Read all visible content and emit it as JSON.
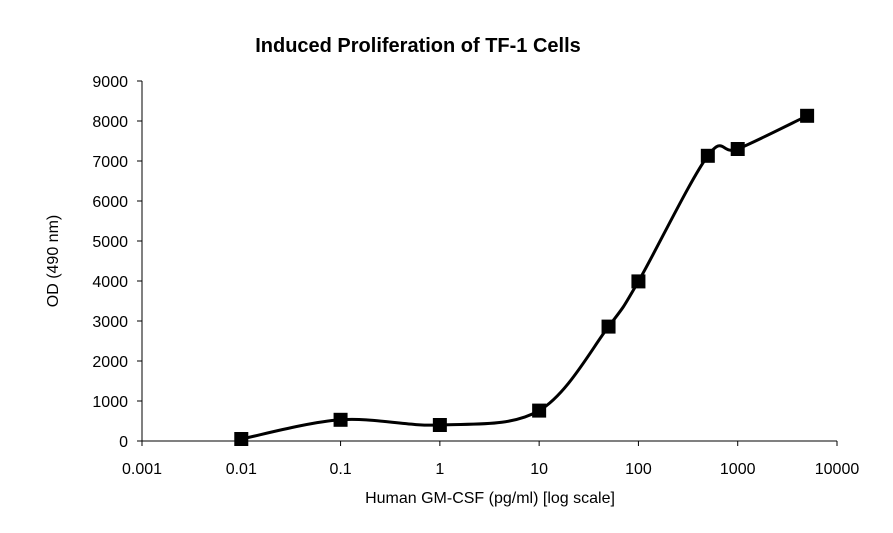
{
  "chart_data": {
    "type": "scatter",
    "title": "Induced Proliferation of TF-1 Cells",
    "xlabel": "Human GM-CSF (pg/ml) [log scale]",
    "ylabel": "OD (490 nm)",
    "x_scale": "log",
    "xlim": [
      0.001,
      10000
    ],
    "ylim": [
      0,
      9000
    ],
    "x_ticks": [
      0.001,
      0.01,
      0.1,
      1,
      10,
      100,
      1000,
      10000
    ],
    "x_tick_labels": [
      "0.001",
      "0.01",
      "0.1",
      "1",
      "10",
      "100",
      "1000",
      "10000"
    ],
    "y_ticks": [
      0,
      1000,
      2000,
      3000,
      4000,
      5000,
      6000,
      7000,
      8000,
      9000
    ],
    "y_tick_labels": [
      "0",
      "1000",
      "2000",
      "3000",
      "4000",
      "5000",
      "6000",
      "7000",
      "8000",
      "9000"
    ],
    "grid": false,
    "legend": "none",
    "series": [
      {
        "marker": "square",
        "line": "smooth",
        "color": "#000000",
        "x": [
          0.01,
          0.1,
          1,
          10,
          50,
          100,
          500,
          1000,
          5000
        ],
        "y": [
          50,
          530,
          400,
          760,
          2860,
          3990,
          7130,
          7300,
          8130
        ]
      }
    ]
  }
}
